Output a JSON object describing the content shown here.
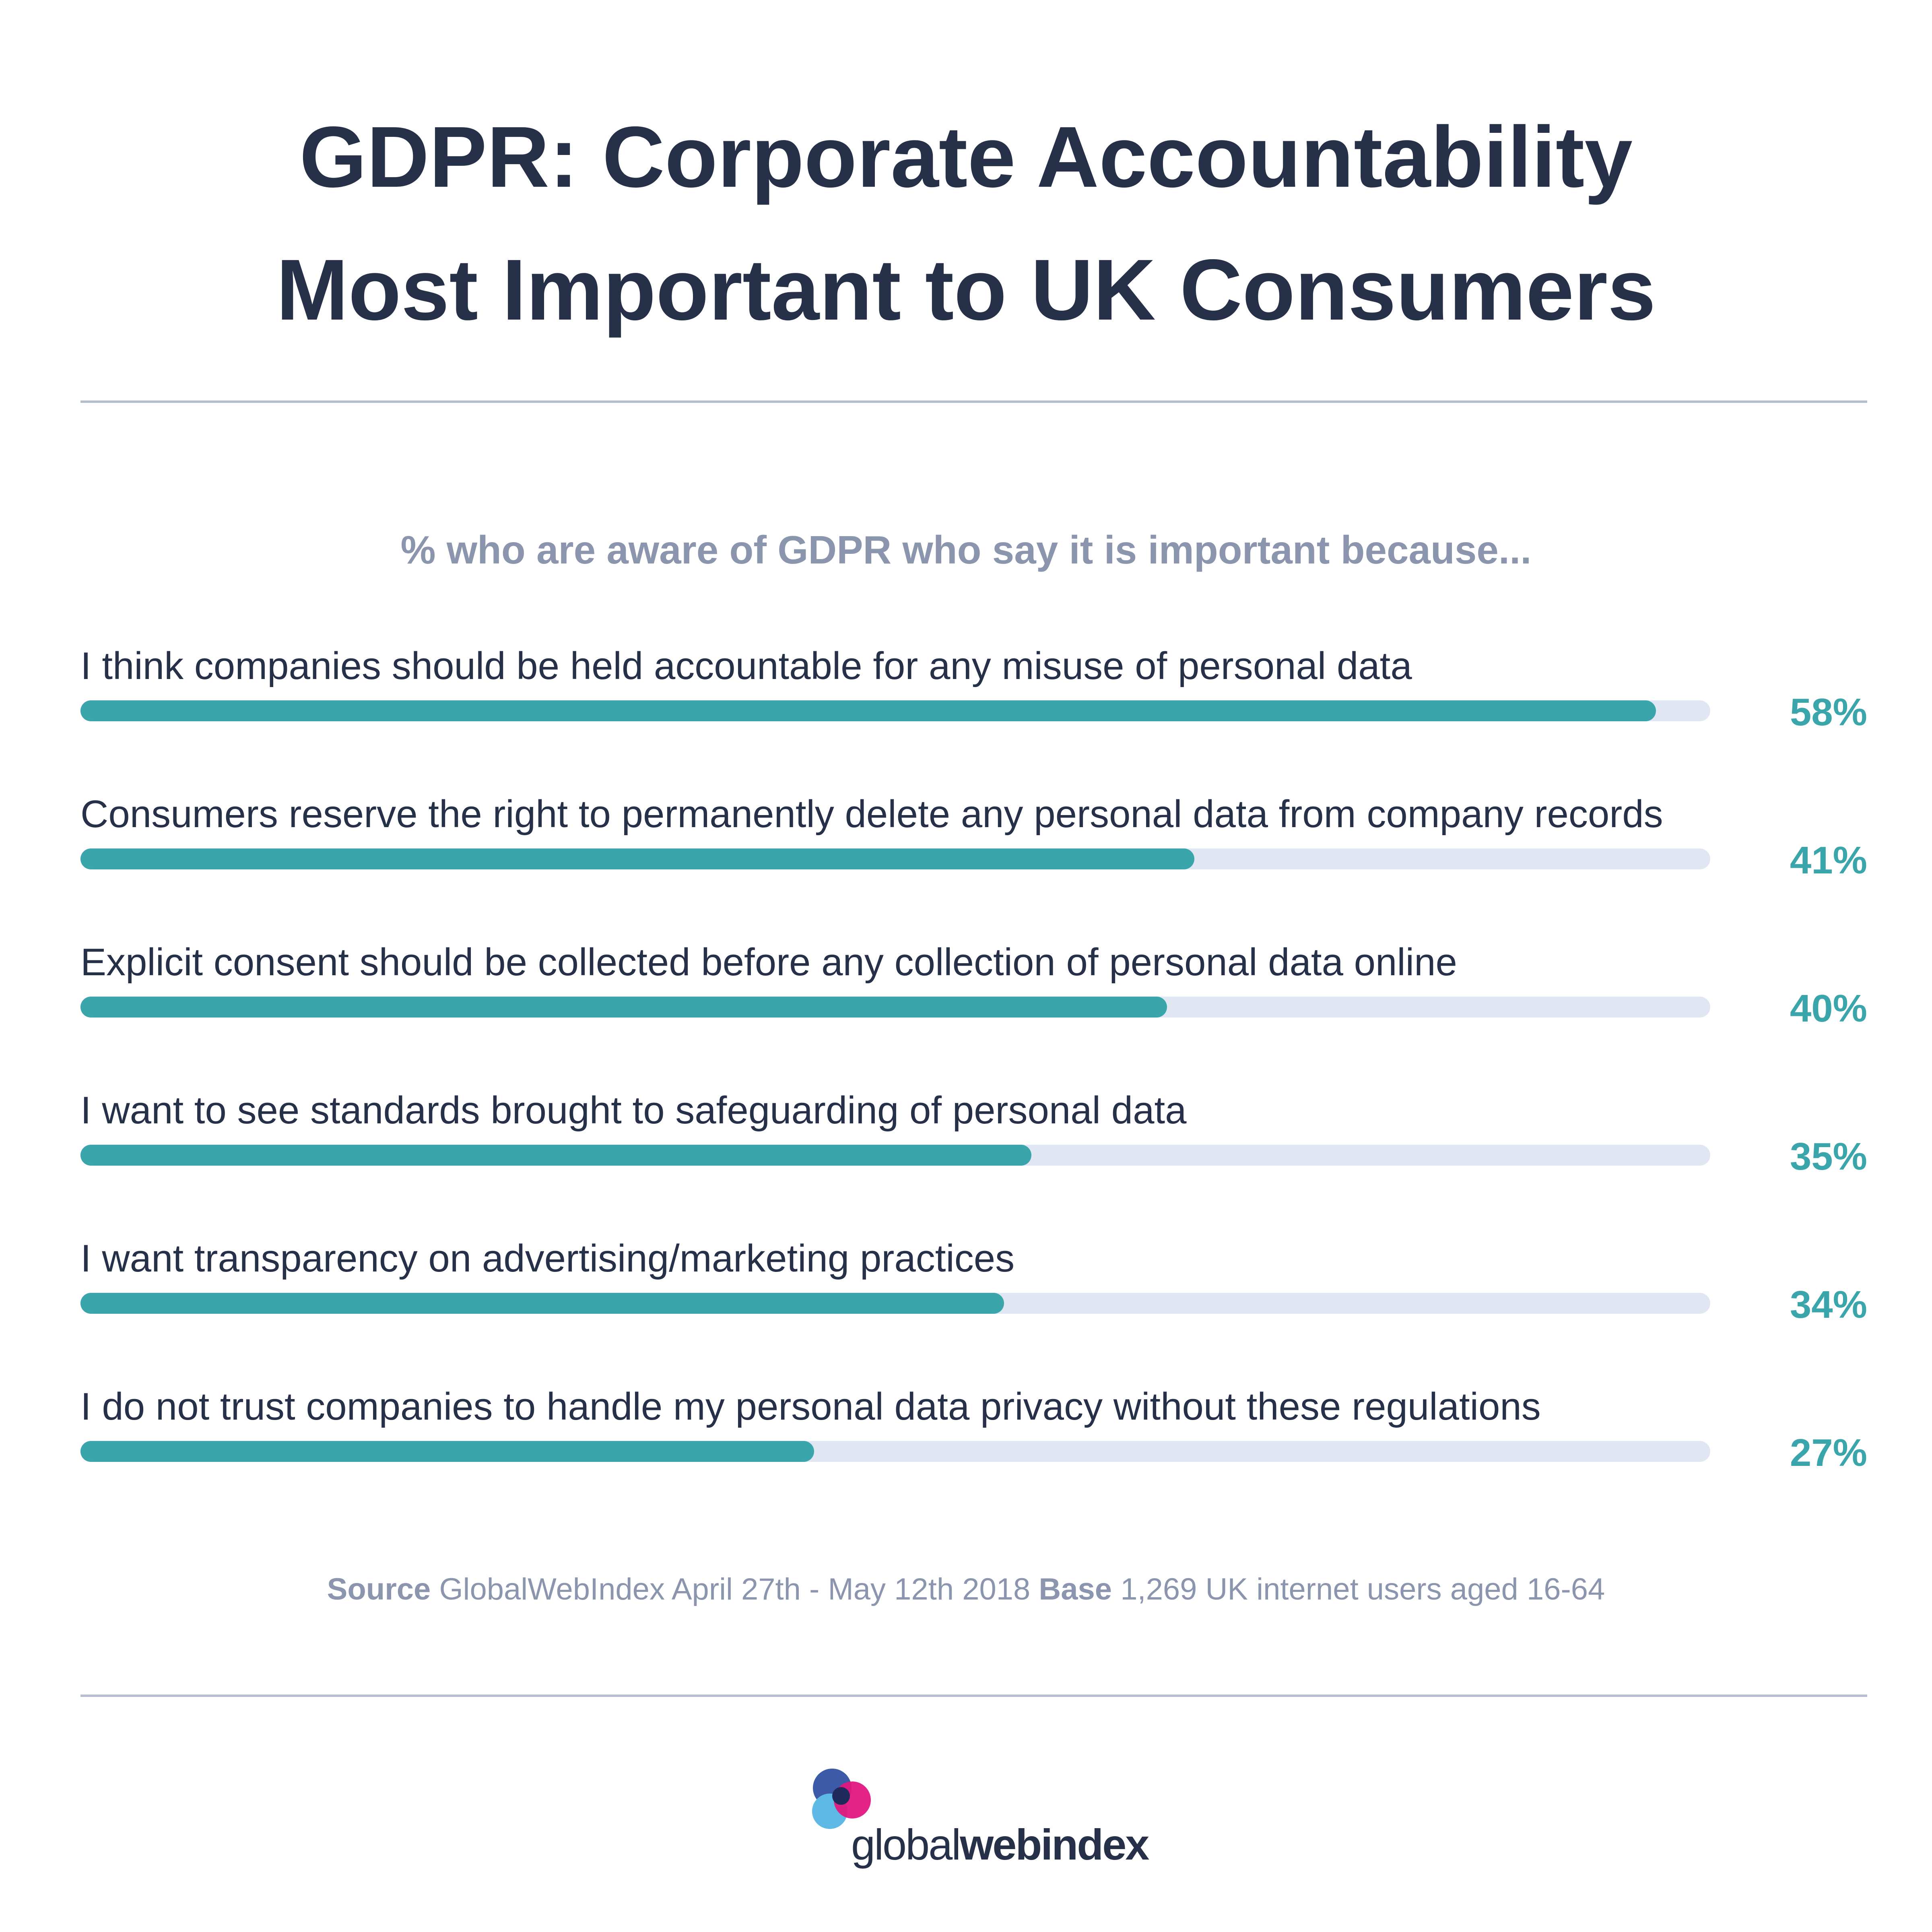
{
  "header": {
    "title_line1": "GDPR: Corporate Accountability",
    "title_line2": "Most Important to UK Consumers"
  },
  "chart_data": {
    "type": "bar",
    "orientation": "horizontal",
    "subtitle": "% who are aware of GDPR who say it is important because...",
    "xlim": [
      0,
      60
    ],
    "categories": [
      "I think companies should be held accountable for any misuse of personal data",
      "Consumers reserve the right to permanently delete any personal data from company records",
      "Explicit consent should be collected before any collection of personal data online",
      "I want to see standards brought to safeguarding of personal data",
      "I want transparency on advertising/marketing practices",
      "I do not trust companies to handle my personal data privacy without these regulations"
    ],
    "values": [
      58,
      41,
      40,
      35,
      34,
      27
    ],
    "value_labels": [
      "58%",
      "41%",
      "40%",
      "35%",
      "34%",
      "27%"
    ],
    "grid": false,
    "colors": {
      "bar": "#3aa5aa",
      "track": "#e1e7f2"
    }
  },
  "footer": {
    "source_label": "Source",
    "source_text": " GlobalWebIndex April 27th - May 12th 2018 ",
    "base_label": "Base",
    "base_text": " 1,269 UK internet users aged 16-64"
  },
  "logo": {
    "text_light": "global",
    "text_bold": "webindex",
    "colors": [
      "#3d5aa8",
      "#e2177e",
      "#5eb9e6",
      "#1f2a5c"
    ]
  }
}
